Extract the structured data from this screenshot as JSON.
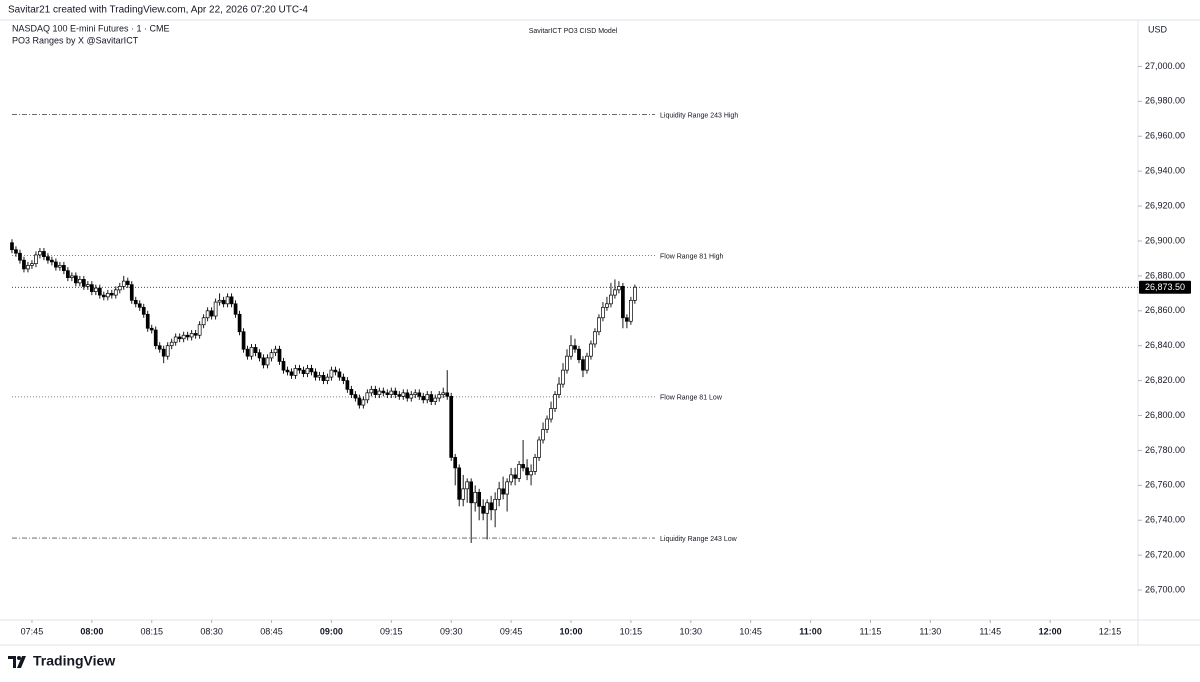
{
  "header": {
    "credit": "Savitar21 created with TradingView.com, Apr 22, 2026 07:20 UTC-4",
    "symbol": "NASDAQ 100 E-mini Futures · 1 · CME",
    "indicator": "PO3 Ranges by X @SavitarICT"
  },
  "footer": {
    "brand": "TradingView"
  },
  "chart_data": {
    "type": "candlestick",
    "title": "SavitarICT PO3 CISD Model",
    "currency": "USD",
    "up_color": "#ffffff",
    "down_color": "#000000",
    "wick_color": "#000000",
    "xlim": [
      "07:37",
      "12:22"
    ],
    "xticks": [
      "07:45",
      "08:00",
      "08:15",
      "08:30",
      "08:45",
      "09:00",
      "09:15",
      "09:30",
      "09:45",
      "10:00",
      "10:15",
      "10:30",
      "10:45",
      "11:00",
      "11:15",
      "11:30",
      "11:45",
      "12:00",
      "12:15"
    ],
    "ylim": [
      26684,
      27014
    ],
    "yticks": [
      {
        "value": 26700,
        "label": "26,700.00"
      },
      {
        "value": 26720,
        "label": "26,720.00"
      },
      {
        "value": 26740,
        "label": "26,740.00"
      },
      {
        "value": 26760,
        "label": "26,760.00"
      },
      {
        "value": 26780,
        "label": "26,780.00"
      },
      {
        "value": 26800,
        "label": "26,800.00"
      },
      {
        "value": 26820,
        "label": "26,820.00"
      },
      {
        "value": 26840,
        "label": "26,840.00"
      },
      {
        "value": 26860,
        "label": "26,860.00"
      },
      {
        "value": 26880,
        "label": "26,880.00"
      },
      {
        "value": 26900,
        "label": "26,900.00"
      },
      {
        "value": 26920,
        "label": "26,920.00"
      },
      {
        "value": 26940,
        "label": "26,940.00"
      },
      {
        "value": 26960,
        "label": "26,960.00"
      },
      {
        "value": 26980,
        "label": "26,980.00"
      },
      {
        "value": 27000,
        "label": "27,000.00"
      }
    ],
    "last_price": {
      "value": 26873.5,
      "label": "26,873.50"
    },
    "levels": [
      {
        "name": "Liquidity Range 243 High",
        "value": 26972.5,
        "style": "dashdot"
      },
      {
        "name": "Flow Range 81 High",
        "value": 26891.6,
        "style": "dotted"
      },
      {
        "name": "Flow Range 81 Low",
        "value": 26810.7,
        "style": "dotted"
      },
      {
        "name": "Liquidity Range 243 Low",
        "value": 26729.8,
        "style": "dashdot"
      }
    ],
    "x": [
      "07:40",
      "07:41",
      "07:42",
      "07:43",
      "07:44",
      "07:45",
      "07:46",
      "07:47",
      "07:48",
      "07:49",
      "07:50",
      "07:51",
      "07:52",
      "07:53",
      "07:54",
      "07:55",
      "07:56",
      "07:57",
      "07:58",
      "07:59",
      "08:00",
      "08:01",
      "08:02",
      "08:03",
      "08:04",
      "08:05",
      "08:06",
      "08:07",
      "08:08",
      "08:09",
      "08:10",
      "08:11",
      "08:12",
      "08:13",
      "08:14",
      "08:15",
      "08:16",
      "08:17",
      "08:18",
      "08:19",
      "08:20",
      "08:21",
      "08:22",
      "08:23",
      "08:24",
      "08:25",
      "08:26",
      "08:27",
      "08:28",
      "08:29",
      "08:30",
      "08:31",
      "08:32",
      "08:33",
      "08:34",
      "08:35",
      "08:36",
      "08:37",
      "08:38",
      "08:39",
      "08:40",
      "08:41",
      "08:42",
      "08:43",
      "08:44",
      "08:45",
      "08:46",
      "08:47",
      "08:48",
      "08:49",
      "08:50",
      "08:51",
      "08:52",
      "08:53",
      "08:54",
      "08:55",
      "08:56",
      "08:57",
      "08:58",
      "08:59",
      "09:00",
      "09:01",
      "09:02",
      "09:03",
      "09:04",
      "09:05",
      "09:06",
      "09:07",
      "09:08",
      "09:09",
      "09:10",
      "09:11",
      "09:12",
      "09:13",
      "09:14",
      "09:15",
      "09:16",
      "09:17",
      "09:18",
      "09:19",
      "09:20",
      "09:21",
      "09:22",
      "09:23",
      "09:24",
      "09:25",
      "09:26",
      "09:27",
      "09:28",
      "09:29",
      "09:30",
      "09:31",
      "09:32",
      "09:33",
      "09:34",
      "09:35",
      "09:36",
      "09:37",
      "09:38",
      "09:39",
      "09:40",
      "09:41",
      "09:42",
      "09:43",
      "09:44",
      "09:45",
      "09:46",
      "09:47",
      "09:48",
      "09:49",
      "09:50",
      "09:51",
      "09:52",
      "09:53",
      "09:54",
      "09:55",
      "09:56",
      "09:57",
      "09:58",
      "09:59",
      "10:00",
      "10:01",
      "10:02",
      "10:03",
      "10:04",
      "10:05",
      "10:06",
      "10:07",
      "10:08",
      "10:09",
      "10:10",
      "10:11",
      "10:12",
      "10:13",
      "10:14",
      "10:15",
      "10:16"
    ],
    "open": [
      26899,
      26895,
      26893,
      26889,
      26884,
      26886,
      26887,
      26892,
      26894,
      26891,
      26889,
      26888,
      26885,
      26886,
      26883,
      26879,
      26880,
      26876,
      26878,
      26874,
      26875,
      26871,
      26873,
      26869,
      26868,
      26870,
      26869,
      26872,
      26874,
      26877,
      26875,
      26866,
      26864,
      26862,
      26858,
      26850,
      26849,
      26840,
      26838,
      26834,
      26840,
      26842,
      26845,
      26844,
      26846,
      26845,
      26847,
      26846,
      26852,
      26856,
      26860,
      26857,
      26865,
      26866,
      26864,
      26868,
      26864,
      26858,
      26848,
      26838,
      26834,
      26839,
      26836,
      26833,
      26829,
      26833,
      26836,
      26838,
      26831,
      26826,
      26825,
      26823,
      26827,
      26826,
      26824,
      26827,
      26825,
      26822,
      26823,
      26820,
      26822,
      26826,
      26825,
      26822,
      26820,
      26815,
      26812,
      26810,
      26806,
      26809,
      26813,
      26815,
      26812,
      26814,
      26813,
      26812,
      26814,
      26812,
      26811,
      26813,
      26810,
      26812,
      26813,
      26811,
      26809,
      26812,
      26808,
      26810,
      26812,
      26813,
      26811,
      26776,
      26770,
      26752,
      26758,
      26762,
      26750,
      26756,
      26748,
      26744,
      26750,
      26746,
      26752,
      26758,
      26755,
      26762,
      26766,
      26764,
      26772,
      26770,
      26766,
      26768,
      26776,
      26786,
      26792,
      26798,
      26804,
      26812,
      26818,
      26826,
      26834,
      26840,
      26838,
      26832,
      26826,
      26834,
      26841,
      26848,
      26856,
      26862,
      26864,
      26869,
      26872,
      26874,
      26856,
      26854,
      26866
    ],
    "high": [
      26901,
      26897,
      26895,
      26891,
      26888,
      26889,
      26894,
      26896,
      26896,
      26893,
      26891,
      26890,
      26888,
      26888,
      26885,
      26882,
      26882,
      26880,
      26880,
      26877,
      26877,
      26875,
      26875,
      26871,
      26872,
      26872,
      26874,
      26876,
      26880,
      26879,
      26877,
      26868,
      26866,
      26864,
      26860,
      26852,
      26851,
      26842,
      26840,
      26842,
      26844,
      26847,
      26847,
      26848,
      26848,
      26849,
      26849,
      26854,
      26858,
      26862,
      26862,
      26867,
      26870,
      26868,
      26870,
      26870,
      26866,
      26860,
      26850,
      26840,
      26841,
      26841,
      26838,
      26835,
      26835,
      26838,
      26840,
      26840,
      26833,
      26828,
      26827,
      26829,
      26829,
      26828,
      26829,
      26829,
      26827,
      26825,
      26825,
      26824,
      26828,
      26828,
      26827,
      26824,
      26822,
      26817,
      26814,
      26812,
      26811,
      26815,
      26817,
      26817,
      26816,
      26816,
      26815,
      26816,
      26816,
      26814,
      26815,
      26815,
      26814,
      26815,
      26815,
      26813,
      26814,
      26814,
      26812,
      26814,
      26816,
      26826,
      26813,
      26778,
      26772,
      26766,
      26764,
      26764,
      26760,
      26758,
      26752,
      26752,
      26754,
      26756,
      26762,
      26765,
      26764,
      26770,
      26770,
      26774,
      26786,
      26775,
      26772,
      26778,
      26788,
      26796,
      26800,
      26808,
      26814,
      26822,
      26830,
      26838,
      26846,
      26844,
      26840,
      26834,
      26836,
      26843,
      26850,
      26858,
      26865,
      26868,
      26876,
      26878,
      26877,
      26876,
      26858,
      26868,
      26875
    ],
    "low": [
      26893,
      26891,
      26887,
      26882,
      26882,
      26884,
      26885,
      26890,
      26889,
      26887,
      26886,
      26883,
      26883,
      26881,
      26877,
      26877,
      26874,
      26874,
      26872,
      26872,
      26869,
      26869,
      26867,
      26866,
      26866,
      26867,
      26867,
      26870,
      26872,
      26873,
      26864,
      26862,
      26860,
      26856,
      26848,
      26847,
      26838,
      26836,
      26830,
      26832,
      26838,
      26840,
      26842,
      26842,
      26843,
      26843,
      26844,
      26844,
      26850,
      26854,
      26855,
      26855,
      26863,
      26862,
      26862,
      26862,
      26856,
      26846,
      26836,
      26832,
      26832,
      26834,
      26831,
      26827,
      26827,
      26831,
      26834,
      26829,
      26824,
      26823,
      26821,
      26821,
      26824,
      26822,
      26822,
      26823,
      26820,
      26820,
      26818,
      26818,
      26820,
      26823,
      26820,
      26818,
      26813,
      26810,
      26808,
      26804,
      26804,
      26807,
      26811,
      26810,
      26810,
      26811,
      26810,
      26810,
      26810,
      26809,
      26809,
      26808,
      26808,
      26810,
      26809,
      26807,
      26807,
      26806,
      26806,
      26808,
      26810,
      26809,
      26774,
      26760,
      26748,
      26748,
      26750,
      26727,
      26745,
      26740,
      26740,
      26729,
      26740,
      26736,
      26748,
      26752,
      26745,
      26760,
      26760,
      26762,
      26768,
      26763,
      26760,
      26766,
      26774,
      26784,
      26790,
      26796,
      26802,
      26810,
      26816,
      26824,
      26832,
      26836,
      26830,
      26822,
      26824,
      26832,
      26839,
      26846,
      26854,
      26860,
      26862,
      26867,
      26870,
      26850,
      26850,
      26852,
      26864
    ],
    "close": [
      26895,
      26893,
      26889,
      26884,
      26886,
      26887,
      26892,
      26894,
      26891,
      26889,
      26888,
      26885,
      26886,
      26883,
      26879,
      26880,
      26876,
      26878,
      26874,
      26875,
      26871,
      26873,
      26869,
      26868,
      26870,
      26869,
      26872,
      26874,
      26877,
      26875,
      26866,
      26864,
      26862,
      26858,
      26850,
      26849,
      26840,
      26838,
      26834,
      26840,
      26842,
      26845,
      26844,
      26846,
      26845,
      26847,
      26846,
      26852,
      26856,
      26860,
      26857,
      26865,
      26866,
      26864,
      26868,
      26864,
      26858,
      26848,
      26838,
      26834,
      26839,
      26836,
      26833,
      26829,
      26833,
      26836,
      26838,
      26831,
      26826,
      26825,
      26823,
      26827,
      26826,
      26824,
      26827,
      26825,
      26822,
      26823,
      26820,
      26822,
      26826,
      26825,
      26822,
      26820,
      26815,
      26812,
      26810,
      26806,
      26809,
      26813,
      26815,
      26812,
      26814,
      26813,
      26812,
      26814,
      26812,
      26811,
      26813,
      26810,
      26812,
      26813,
      26811,
      26809,
      26812,
      26808,
      26810,
      26812,
      26813,
      26811,
      26776,
      26770,
      26752,
      26758,
      26762,
      26750,
      26756,
      26748,
      26744,
      26750,
      26746,
      26752,
      26758,
      26755,
      26762,
      26766,
      26764,
      26772,
      26770,
      26766,
      26768,
      26776,
      26786,
      26792,
      26798,
      26804,
      26812,
      26818,
      26826,
      26834,
      26840,
      26838,
      26832,
      26826,
      26834,
      26841,
      26848,
      26856,
      26862,
      26864,
      26869,
      26872,
      26874,
      26856,
      26854,
      26866,
      26873.5
    ]
  }
}
